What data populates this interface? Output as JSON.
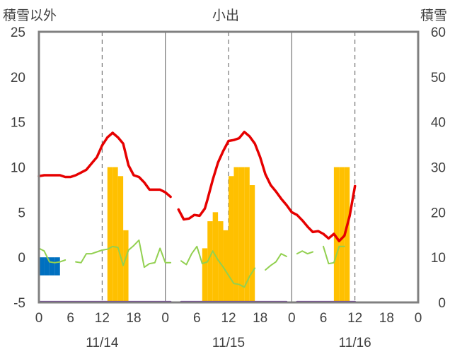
{
  "chart_data": {
    "type": "bar",
    "title": "小出",
    "left_axis_label": "積雪以外",
    "right_axis_label": "積雪",
    "left_ylim": [
      -5,
      25
    ],
    "right_ylim": [
      0,
      60
    ],
    "left_ticks": [
      "-5",
      "0",
      "5",
      "10",
      "15",
      "20",
      "25"
    ],
    "right_ticks": [
      "0",
      "10",
      "20",
      "30",
      "40",
      "50",
      "60"
    ],
    "xlim_hours": [
      0,
      72
    ],
    "x_tick_labels": [
      "0",
      "6",
      "12",
      "18",
      "0",
      "6",
      "12",
      "18",
      "0",
      "6",
      "12",
      "18",
      "0"
    ],
    "date_labels": [
      "11/14",
      "11/15",
      "11/16"
    ],
    "grid": "vertical day dividers (solid) and noon lines (dashed)",
    "series": [
      {
        "key": "temperature",
        "kind": "line",
        "axis": "left",
        "color": "#e60000",
        "segments": [
          [
            [
              0,
              9.0
            ],
            [
              1,
              9.1
            ],
            [
              2,
              9.1
            ],
            [
              3,
              9.1
            ],
            [
              4,
              9.1
            ],
            [
              5,
              8.9
            ],
            [
              6,
              8.9
            ],
            [
              7,
              9.1
            ],
            [
              8,
              9.4
            ],
            [
              9,
              9.7
            ],
            [
              10,
              10.4
            ],
            [
              11,
              11.1
            ],
            [
              12,
              12.4
            ],
            [
              13,
              13.3
            ],
            [
              14,
              13.8
            ],
            [
              15,
              13.3
            ],
            [
              16,
              12.6
            ],
            [
              17,
              10.2
            ],
            [
              18,
              9.1
            ],
            [
              19,
              8.9
            ],
            [
              20,
              8.3
            ],
            [
              21,
              7.5
            ],
            [
              22,
              7.5
            ],
            [
              23,
              7.5
            ],
            [
              24,
              7.2
            ],
            [
              25,
              6.7
            ]
          ],
          [
            [
              26.5,
              5.3
            ],
            [
              27.5,
              4.2
            ],
            [
              28.5,
              4.3
            ],
            [
              29.5,
              4.7
            ],
            [
              30.5,
              4.6
            ],
            [
              31.5,
              5.4
            ],
            [
              32,
              6.4
            ],
            [
              33,
              8.6
            ],
            [
              34,
              10.5
            ],
            [
              35,
              11.8
            ],
            [
              36,
              12.9
            ],
            [
              37,
              13.0
            ],
            [
              38,
              13.2
            ],
            [
              39,
              13.9
            ],
            [
              40,
              13.4
            ],
            [
              41,
              12.6
            ],
            [
              42,
              11.1
            ],
            [
              43,
              9.2
            ],
            [
              44,
              8.0
            ],
            [
              45,
              7.3
            ],
            [
              46,
              6.5
            ],
            [
              47,
              5.8
            ],
            [
              48,
              5.0
            ],
            [
              49,
              4.7
            ],
            [
              50,
              4.1
            ],
            [
              51,
              3.4
            ],
            [
              52,
              2.8
            ],
            [
              53,
              2.9
            ],
            [
              54,
              2.6
            ],
            [
              55,
              2.1
            ],
            [
              56,
              2.6
            ],
            [
              57,
              1.8
            ],
            [
              58,
              2.4
            ],
            [
              59,
              4.6
            ],
            [
              60,
              7.9
            ]
          ]
        ]
      },
      {
        "key": "wind_speed",
        "kind": "line",
        "axis": "left",
        "color": "#92d050",
        "segments": [
          [
            [
              0,
              1.0
            ],
            [
              1,
              0.7
            ],
            [
              2,
              -0.5
            ],
            [
              3,
              -0.6
            ],
            [
              4,
              -0.5
            ],
            [
              5,
              -0.3
            ]
          ],
          [
            [
              7,
              -0.5
            ],
            [
              8,
              -0.6
            ],
            [
              9,
              0.4
            ],
            [
              10,
              0.4
            ],
            [
              11,
              0.6
            ],
            [
              12,
              0.8
            ],
            [
              13,
              0.9
            ],
            [
              14,
              1.2
            ],
            [
              15,
              1.1
            ],
            [
              16,
              -0.9
            ],
            [
              17,
              0.8
            ],
            [
              18,
              1.3
            ],
            [
              19,
              1.9
            ],
            [
              20,
              -1.1
            ],
            [
              21,
              -0.7
            ],
            [
              22,
              -0.6
            ],
            [
              23,
              1.0
            ],
            [
              24,
              -0.6
            ],
            [
              25,
              -0.6
            ]
          ],
          [
            [
              27,
              -0.4
            ],
            [
              28,
              -0.8
            ],
            [
              29,
              0.4
            ],
            [
              30,
              1.2
            ],
            [
              31,
              -0.7
            ],
            [
              32,
              -0.5
            ],
            [
              33,
              0.7
            ],
            [
              34,
              -0.3
            ],
            [
              35,
              -1.1
            ],
            [
              36,
              -2.0
            ],
            [
              37,
              -2.9
            ],
            [
              38,
              -3.0
            ],
            [
              39,
              -3.3
            ],
            [
              40,
              -2.1
            ],
            [
              41,
              -1.2
            ]
          ],
          [
            [
              43,
              -1.4
            ],
            [
              44,
              -0.9
            ],
            [
              45,
              -0.5
            ],
            [
              46,
              0.4
            ],
            [
              47,
              0.1
            ]
          ],
          [
            [
              49,
              0.4
            ],
            [
              50,
              0.7
            ],
            [
              51,
              0.4
            ],
            [
              52,
              0.6
            ]
          ],
          [
            [
              54,
              1.2
            ],
            [
              55,
              -0.7
            ],
            [
              56,
              -0.6
            ],
            [
              57,
              1.2
            ],
            [
              58,
              1.2
            ]
          ]
        ]
      },
      {
        "key": "precipitation",
        "kind": "bar",
        "axis": "left",
        "color": "#0070c0",
        "values": [
          [
            0,
            -2.0
          ],
          [
            1,
            -2.0
          ],
          [
            2,
            -2.0
          ],
          [
            3,
            -2.0
          ]
        ]
      },
      {
        "key": "snow_depth",
        "kind": "bar",
        "axis": "right",
        "color": "#ffc000",
        "values": [
          [
            13,
            30
          ],
          [
            14,
            30
          ],
          [
            15,
            28
          ],
          [
            16,
            16
          ],
          [
            31,
            12
          ],
          [
            32,
            18
          ],
          [
            33,
            20
          ],
          [
            34,
            18
          ],
          [
            35,
            16
          ],
          [
            36,
            28
          ],
          [
            37,
            30
          ],
          [
            38,
            30
          ],
          [
            39,
            30
          ],
          [
            40,
            26
          ],
          [
            56,
            30
          ],
          [
            57,
            30
          ],
          [
            58,
            30
          ]
        ]
      },
      {
        "key": "sunshine",
        "kind": "line",
        "axis": "left",
        "color": "#7030a0",
        "segments": [
          [
            [
              0,
              -4.95
            ],
            [
              25,
              -4.95
            ]
          ],
          [
            [
              27,
              -4.95
            ],
            [
              47,
              -4.95
            ]
          ],
          [
            [
              49,
              -4.95
            ],
            [
              60,
              -4.95
            ]
          ]
        ]
      }
    ]
  }
}
